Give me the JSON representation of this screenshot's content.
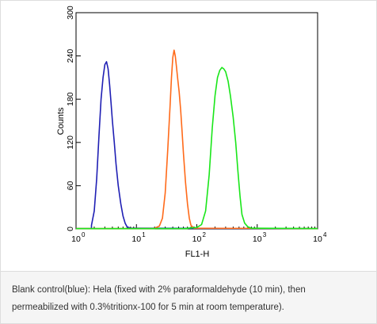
{
  "chart_data": {
    "type": "line",
    "xscale": "log",
    "xlim": [
      1,
      10000
    ],
    "ylim": [
      0,
      300
    ],
    "xlabel": "FL1-H",
    "ylabel": "Counts",
    "x_tick_labels": [
      "10",
      "10",
      "10",
      "10",
      "10"
    ],
    "x_tick_exponents": [
      "0",
      "1",
      "2",
      "3",
      "4"
    ],
    "x_tick_values": [
      1,
      10,
      100,
      1000,
      10000
    ],
    "y_tick_labels": [
      "0",
      "60",
      "120",
      "180",
      "240",
      "300"
    ],
    "y_tick_values": [
      0,
      60,
      120,
      180,
      240,
      300
    ],
    "grid": false,
    "series": [
      {
        "color": "#1f1fb4",
        "x": [
          1.8,
          2.0,
          2.2,
          2.4,
          2.6,
          2.8,
          3.0,
          3.2,
          3.4,
          3.6,
          3.8,
          4.0,
          4.3,
          4.6,
          5.0,
          5.5,
          6.0,
          6.5,
          7.0,
          8.0
        ],
        "y": [
          5,
          25,
          70,
          130,
          180,
          210,
          228,
          232,
          222,
          200,
          175,
          150,
          120,
          90,
          60,
          35,
          18,
          8,
          3,
          1
        ]
      },
      {
        "color": "#ff6a1a",
        "x": [
          20,
          24,
          27,
          30,
          33,
          36,
          38,
          40,
          42,
          44,
          46,
          48,
          51,
          54,
          57,
          60,
          65,
          70,
          75,
          80,
          90
        ],
        "y": [
          1,
          4,
          15,
          50,
          110,
          170,
          210,
          238,
          248,
          240,
          225,
          210,
          190,
          165,
          135,
          105,
          65,
          35,
          15,
          5,
          1
        ]
      },
      {
        "color": "#19e619",
        "x": [
          70,
          100,
          120,
          140,
          160,
          180,
          200,
          220,
          240,
          260,
          280,
          300,
          330,
          360,
          400,
          440,
          480,
          520,
          560,
          620,
          700,
          800
        ],
        "y": [
          1,
          2,
          6,
          25,
          75,
          140,
          185,
          210,
          220,
          224,
          222,
          218,
          205,
          185,
          155,
          120,
          80,
          45,
          20,
          8,
          3,
          1
        ]
      }
    ]
  },
  "caption": {
    "line1": "Blank control(blue): Hela (fixed with 2% paraformaldehyde (10 min), then",
    "line2": "permeabilized with 0.3%tritionx-100 for 5 min at room temperature)."
  }
}
